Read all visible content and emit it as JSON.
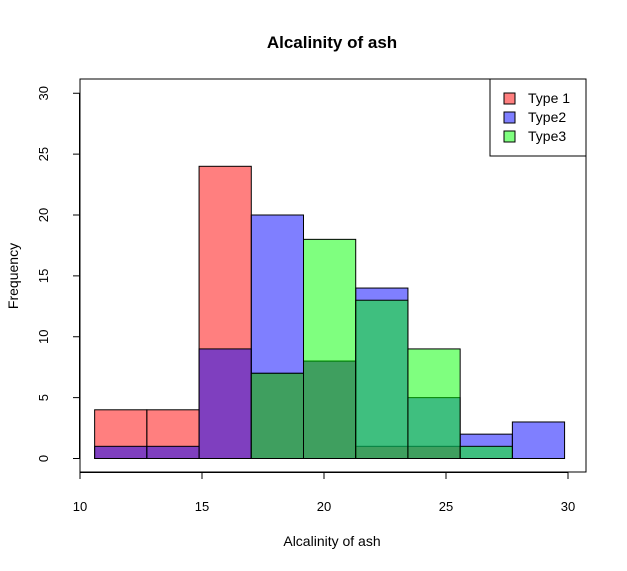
{
  "chart_data": {
    "type": "bar",
    "title": "Alcalinity of ash",
    "xlabel": "Alcalinity of ash",
    "ylabel": "Frequency",
    "xlim": [
      10,
      30
    ],
    "ylim": [
      0,
      30
    ],
    "x_ticks": [
      10,
      15,
      20,
      25,
      30
    ],
    "y_ticks": [
      0,
      5,
      10,
      15,
      20,
      25,
      30
    ],
    "grid": false,
    "legend_position": "top-right",
    "bin_edges": [
      10.6,
      12.74,
      14.88,
      17.02,
      19.16,
      21.3,
      23.44,
      25.58,
      27.72,
      29.86
    ],
    "series": [
      {
        "name": "Type 1",
        "color": "#FF0000",
        "opacity": 0.5,
        "values": [
          4,
          4,
          24,
          7,
          8,
          1,
          1,
          0,
          0
        ]
      },
      {
        "name": "Type2",
        "color": "#0000FF",
        "opacity": 0.5,
        "values": [
          1,
          1,
          9,
          20,
          8,
          14,
          5,
          2,
          3
        ]
      },
      {
        "name": "Type3",
        "color": "#00FF00",
        "opacity": 0.5,
        "values": [
          0,
          0,
          0,
          7,
          18,
          13,
          9,
          1,
          0
        ]
      }
    ]
  }
}
